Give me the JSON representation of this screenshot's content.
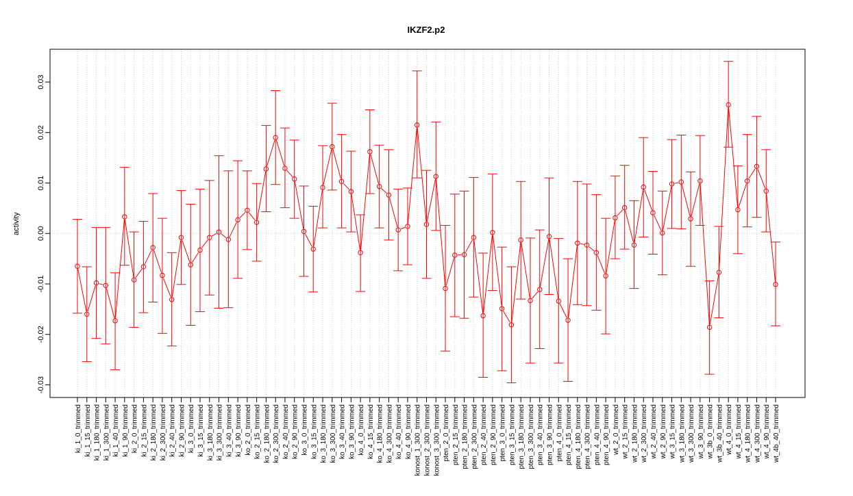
{
  "chart_data": {
    "type": "line",
    "title": "IKZF2.p2",
    "xlabel": "",
    "ylabel": "activity",
    "ylim": [
      -0.0325,
      0.0365
    ],
    "yticks": [
      -0.03,
      -0.02,
      -0.01,
      0.0,
      0.01,
      0.02,
      0.03
    ],
    "ytick_labels": [
      "-0.03",
      "-0.02",
      "-0.01",
      "0.00",
      "0.01",
      "0.02",
      "0.03"
    ],
    "grid": "vertical dotted per category; dotted horizontal reference at 0",
    "colors": {
      "series": "#ff0000",
      "grid": "#d3d3d3"
    },
    "categories": [
      "ki_1_0_trimmed",
      "ki_1_15_trimmed",
      "ki_1_180_trimmed",
      "ki_1_300_trimmed",
      "ki_1_40_trimmed",
      "ki_1_90_trimmed",
      "ki_2_0_trimmed",
      "ki_2_15_trimmed",
      "ki_2_180_trimmed",
      "ki_2_300_trimmed",
      "ki_2_40_trimmed",
      "ki_2_90_trimmed",
      "ki_3_0_trimmed",
      "ki_3_15_trimmed",
      "ki_3_180_trimmed",
      "ki_3_300_trimmed",
      "ki_3_40_trimmed",
      "ki_3_90_trimmed",
      "ko_2_0_trimmed",
      "ko_2_15_trimmed",
      "ko_2_180_trimmed",
      "ko_2_300_trimmed",
      "ko_2_40_trimmed",
      "ko_2_90_trimmed",
      "ko_3_0_trimmed",
      "ko_3_15_trimmed",
      "ko_3_180_trimmed",
      "ko_3_300_trimmed",
      "ko_3_40_trimmed",
      "ko_3_90_trimmed",
      "ko_4_0_trimmed",
      "ko_4_15_trimmed",
      "ko_4_180_trimmed",
      "ko_4_300_trimmed",
      "ko_4_40_trimmed",
      "ko_4_90_trimmed",
      "konost_1_300_trimmed",
      "konost_2_300_trimmed",
      "konost_3_300_trimmed",
      "pten_2_0_trimmed",
      "pten_2_15_trimmed",
      "pten_2_180_trimmed",
      "pten_2_300_trimmed",
      "pten_2_40_trimmed",
      "pten_2_90_trimmed",
      "pten_3_0_trimmed",
      "pten_3_15_trimmed",
      "pten_3_180_trimmed",
      "pten_3_300_trimmed",
      "pten_3_40_trimmed",
      "pten_3_90_trimmed",
      "pten_4_0_trimmed",
      "pten_4_15_trimmed",
      "pten_4_180_trimmed",
      "pten_4_300_trimmed",
      "pten_4_40_trimmed",
      "pten_4_90_trimmed",
      "wt_2_0_trimmed",
      "wt_2_15_trimmed",
      "wt_2_180_trimmed",
      "wt_2_300_trimmed",
      "wt_2_40_trimmed",
      "wt_2_90_trimmed",
      "wt_3_15_trimmed",
      "wt_3_180_trimmed",
      "wt_3_300_trimmed",
      "wt_3_90_trimmed",
      "wt_3b_0_trimmed",
      "wt_3b_40_trimmed",
      "wt_4_0_trimmed",
      "wt_4_15_trimmed",
      "wt_4_180_trimmed",
      "wt_4_300_trimmed",
      "wt_4_90_trimmed",
      "wt_4b_40_trimmed"
    ],
    "series": [
      {
        "values": [
          -0.0065,
          -0.016,
          -0.0098,
          -0.0103,
          -0.0173,
          0.0033,
          -0.0092,
          -0.0066,
          -0.0028,
          -0.0083,
          -0.0131,
          -0.0008,
          -0.0062,
          -0.0033,
          -0.0008,
          0.0003,
          -0.0012,
          0.0027,
          0.0046,
          0.0022,
          0.0128,
          0.019,
          0.0129,
          0.0108,
          0.0004,
          -0.0031,
          0.0091,
          0.0172,
          0.0103,
          0.0083,
          -0.0038,
          0.0162,
          0.0093,
          0.0076,
          0.0007,
          0.0014,
          0.0215,
          0.0018,
          0.0113,
          -0.0109,
          -0.0043,
          -0.0042,
          -0.0008,
          -0.0163,
          0.0002,
          -0.0149,
          -0.0181,
          -0.0013,
          -0.0133,
          -0.0111,
          -0.0006,
          -0.0134,
          -0.0172,
          -0.0019,
          -0.0023,
          -0.0038,
          -0.0084,
          0.0031,
          0.0051,
          -0.0023,
          0.0092,
          0.0041,
          0.0001,
          0.0098,
          0.0102,
          0.0029,
          0.0104,
          -0.0186,
          -0.0077,
          0.0255,
          0.0047,
          0.0104,
          0.0133,
          0.0084,
          -0.0101
        ],
        "upper": [
          0.0028,
          -0.0066,
          0.0012,
          0.0012,
          -0.0078,
          0.0131,
          0.0003,
          0.0024,
          0.0079,
          0.003,
          -0.0038,
          0.0085,
          0.0058,
          0.0088,
          0.0105,
          0.0154,
          0.0124,
          0.0144,
          0.0124,
          0.0099,
          0.0214,
          0.0283,
          0.0209,
          0.0185,
          0.0094,
          0.0054,
          0.0174,
          0.0258,
          0.0196,
          0.0163,
          0.0037,
          0.0245,
          0.0175,
          0.0166,
          0.0088,
          0.009,
          0.0322,
          0.0125,
          0.0221,
          0.0016,
          0.0078,
          0.0084,
          0.0111,
          -0.0039,
          0.0118,
          -0.0027,
          -0.0066,
          0.0103,
          -0.0009,
          0.0007,
          0.011,
          -0.001,
          -0.005,
          0.0103,
          0.0098,
          0.0077,
          0.003,
          0.0114,
          0.0135,
          0.0065,
          0.019,
          0.0123,
          0.0084,
          0.0186,
          0.0195,
          0.0122,
          0.0194,
          -0.0094,
          0.0014,
          0.0341,
          0.0134,
          0.0196,
          0.0232,
          0.0166,
          -0.0017
        ],
        "lower": [
          -0.0158,
          -0.0254,
          -0.0208,
          -0.0219,
          -0.027,
          -0.0063,
          -0.0186,
          -0.0157,
          -0.0136,
          -0.0198,
          -0.0223,
          -0.0101,
          -0.0182,
          -0.0155,
          -0.0122,
          -0.0148,
          -0.0147,
          -0.0089,
          -0.0032,
          -0.0055,
          0.0043,
          0.0097,
          0.0051,
          0.003,
          -0.0085,
          -0.0116,
          0.0011,
          0.0086,
          0.0011,
          0.0003,
          -0.0115,
          0.0079,
          0.0011,
          -0.0013,
          -0.0074,
          -0.0062,
          0.011,
          -0.0089,
          0.0006,
          -0.0233,
          -0.0165,
          -0.0168,
          -0.0126,
          -0.0285,
          -0.0113,
          -0.0272,
          -0.0296,
          -0.013,
          -0.0257,
          -0.0228,
          -0.0121,
          -0.0257,
          -0.0293,
          -0.0141,
          -0.0143,
          -0.0152,
          -0.0199,
          -0.005,
          -0.0031,
          -0.0109,
          -0.0007,
          -0.0041,
          -0.0082,
          0.001,
          0.0009,
          -0.0065,
          0.0016,
          -0.0279,
          -0.0167,
          0.0171,
          -0.004,
          0.0013,
          0.0032,
          0.0003,
          -0.0183
        ]
      }
    ]
  }
}
